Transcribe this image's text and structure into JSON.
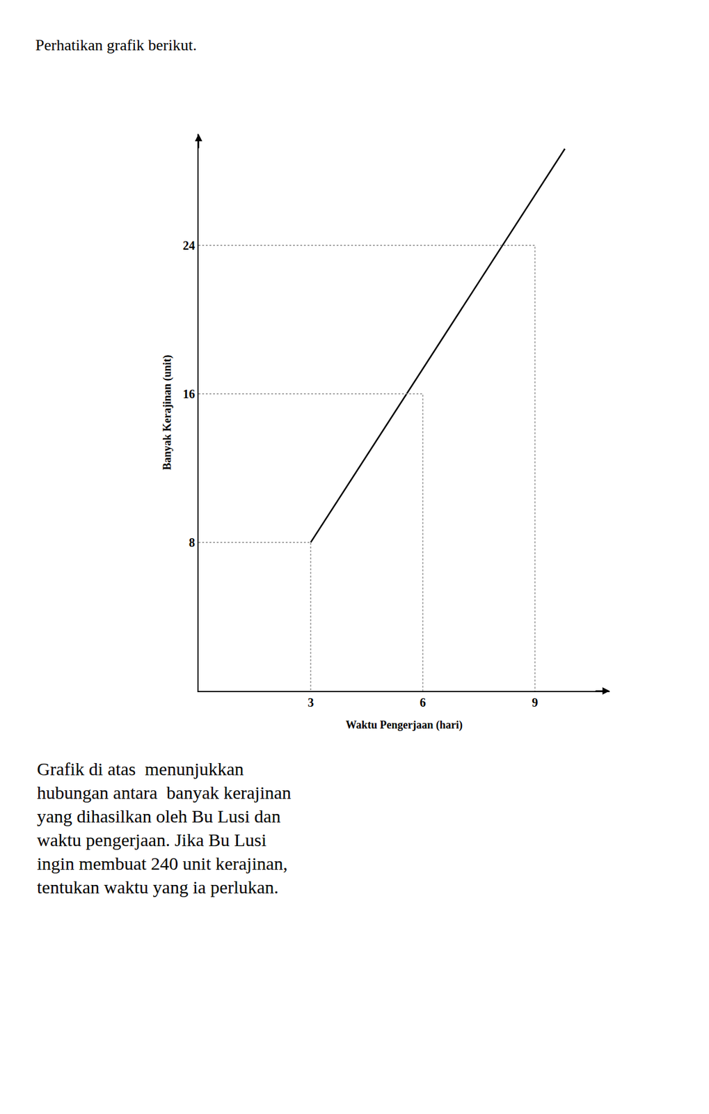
{
  "chart_data": {
    "type": "line",
    "title": "Perhatikan grafik berikut.",
    "x_label": "Waktu Pengerjaan (hari)",
    "y_label": "Banyak Kerajinan (unit)",
    "series": [
      {
        "type": "line",
        "x": [
          3,
          9.8
        ],
        "values": [
          8,
          29.2
        ],
        "color": "#000000",
        "line_style": "solid"
      },
      {
        "type": "droplines",
        "x": [
          3,
          6,
          9
        ],
        "values": [
          8,
          16,
          24
        ],
        "color": "#888888",
        "line_style": "dotted"
      }
    ],
    "xlim": [
      0,
      11.0
    ],
    "ylim": [
      0,
      30
    ],
    "xticks": [
      3,
      6,
      9
    ],
    "yticks": [
      8,
      16,
      24
    ],
    "grid": false,
    "annotations": [
      "Grafik di atas  menunjukkan",
      "hubungan antara  banyak kerajinan",
      "yang dihasilkan oleh Bu Lusi dan",
      "waktu pengerjaan. Jika Bu Lusi",
      "ingin membuat 240 unit kerajinan,",
      "tentukan waktu yang ia perlukan."
    ]
  }
}
